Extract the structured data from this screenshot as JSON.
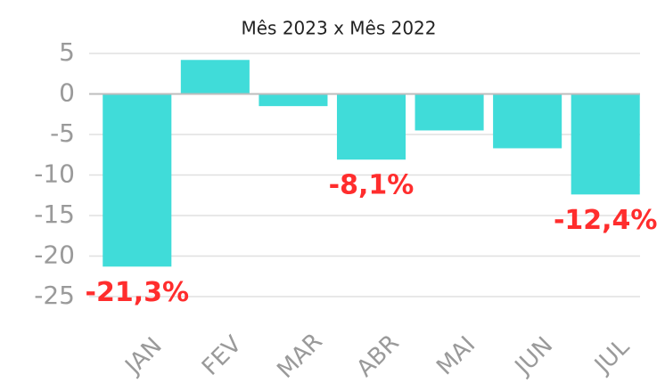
{
  "chart_data": {
    "type": "bar",
    "subtitle": "Mês 2023 x Mês 2022",
    "categories": [
      "JAN",
      "FEV",
      "MAR",
      "ABR",
      "MAI",
      "JUN",
      "JUL"
    ],
    "values": [
      -21.3,
      4.2,
      -1.5,
      -8.1,
      -4.5,
      -6.7,
      -12.4
    ],
    "value_labels": [
      "-21,3%",
      null,
      null,
      "-8,1%",
      null,
      null,
      "-12,4%"
    ],
    "color": "#40dcd9",
    "label_color": "#ff2d2d",
    "ylim": [
      -25,
      5
    ],
    "yticks": [
      5,
      0,
      -5,
      -10,
      -15,
      -20,
      -25
    ],
    "grid": true
  }
}
